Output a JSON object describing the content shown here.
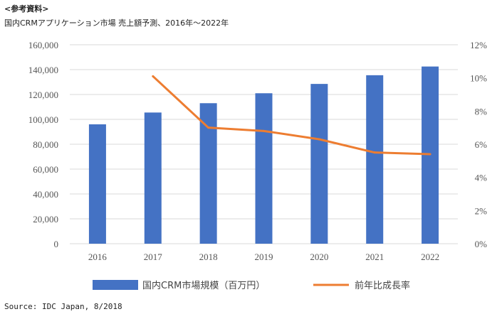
{
  "header": {
    "note_label": "<参考資料>",
    "title": "国内CRMアプリケーション市場 売上額予測、2016年～2022年"
  },
  "source": "Source: IDC Japan, 8/2018",
  "colors": {
    "bar": "#4472C4",
    "line": "#ED7D31",
    "grid": "#D9D9D9",
    "axis_text": "#555555"
  },
  "chart_data": {
    "type": "bar",
    "title": "国内CRMアプリケーション市場 売上額予測、2016年～2022年",
    "categories": [
      "2016",
      "2017",
      "2018",
      "2019",
      "2020",
      "2021",
      "2022"
    ],
    "series": [
      {
        "name": "国内CRM市場規模（百万円）",
        "type": "bar",
        "axis": "left",
        "values": [
          96000,
          105500,
          113000,
          121000,
          128500,
          135500,
          142500
        ]
      },
      {
        "name": "前年比成長率",
        "type": "line",
        "axis": "right",
        "values": [
          null,
          10.1,
          7.0,
          6.8,
          6.3,
          5.5,
          5.4
        ]
      }
    ],
    "y_left": {
      "min": 0,
      "max": 160000,
      "ticks": [
        "0",
        "20,000",
        "40,000",
        "60,000",
        "80,000",
        "100,000",
        "120,000",
        "140,000",
        "160,000"
      ]
    },
    "y_right": {
      "min": 0,
      "max": 12,
      "ticks": [
        "0%",
        "2%",
        "4%",
        "6%",
        "8%",
        "10%",
        "12%"
      ]
    },
    "grid": true,
    "legend_position": "bottom"
  }
}
